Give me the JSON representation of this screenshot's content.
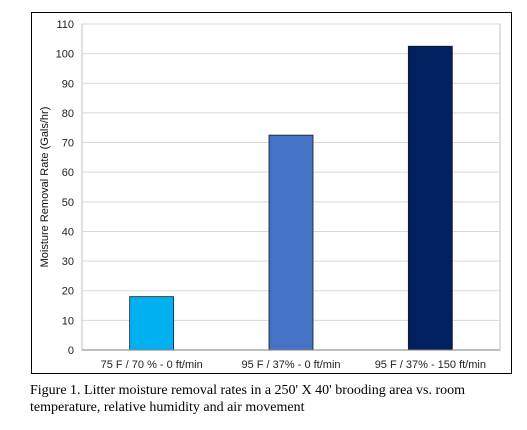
{
  "chart_data": {
    "type": "bar",
    "categories": [
      "75 F / 70 % - 0 ft/min",
      "95 F / 37% - 0 ft/min",
      "95 F / 37% - 150 ft/min"
    ],
    "values": [
      18,
      72.5,
      102.5
    ],
    "colors": [
      "#00b0f0",
      "#4472c4",
      "#002060"
    ],
    "ylabel": "Moisture Removal Rate (Gals/hr)",
    "xlabel": "",
    "ylim": [
      0,
      110
    ],
    "yticks": [
      0,
      10,
      20,
      30,
      40,
      50,
      60,
      70,
      80,
      90,
      100,
      110
    ],
    "grid": true
  },
  "caption": {
    "text": "Figure 1.  Litter moisture removal rates in a 250' X 40' brooding area vs. room temperature, relative humidity and air movement"
  }
}
